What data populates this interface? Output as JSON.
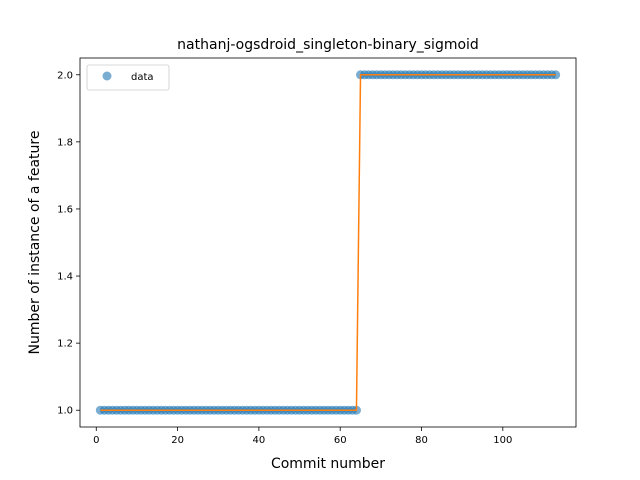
{
  "chart_data": {
    "type": "scatter",
    "title": "nathanj-ogsdroid_singleton-binary_sigmoid",
    "xlabel": "Commit number",
    "ylabel": "Number of instance of a feature",
    "xlim": [
      -4,
      118
    ],
    "ylim": [
      0.95,
      2.05
    ],
    "xticks": [
      0,
      20,
      40,
      60,
      80,
      100
    ],
    "xtick_labels": [
      "0",
      "20",
      "40",
      "60",
      "80",
      "100"
    ],
    "yticks": [
      1.0,
      1.2,
      1.4,
      1.6,
      1.8,
      2.0
    ],
    "ytick_labels": [
      "1.0",
      "1.2",
      "1.4",
      "1.6",
      "1.8",
      "2.0"
    ],
    "grid": false,
    "legend": {
      "placement": "upper-left",
      "entries": [
        "data"
      ]
    },
    "colors": {
      "points": "#1f77b4",
      "fit": "#ff7f0e"
    },
    "series": [
      {
        "name": "data",
        "kind": "points",
        "segments": [
          {
            "x_start": 1,
            "x_end": 64,
            "y": 1.0
          },
          {
            "x_start": 65,
            "x_end": 113,
            "y": 2.0
          }
        ]
      },
      {
        "kind": "line",
        "x": [
          1,
          64,
          65,
          113
        ],
        "y": [
          1.0,
          1.0,
          2.0,
          2.0
        ]
      }
    ]
  }
}
